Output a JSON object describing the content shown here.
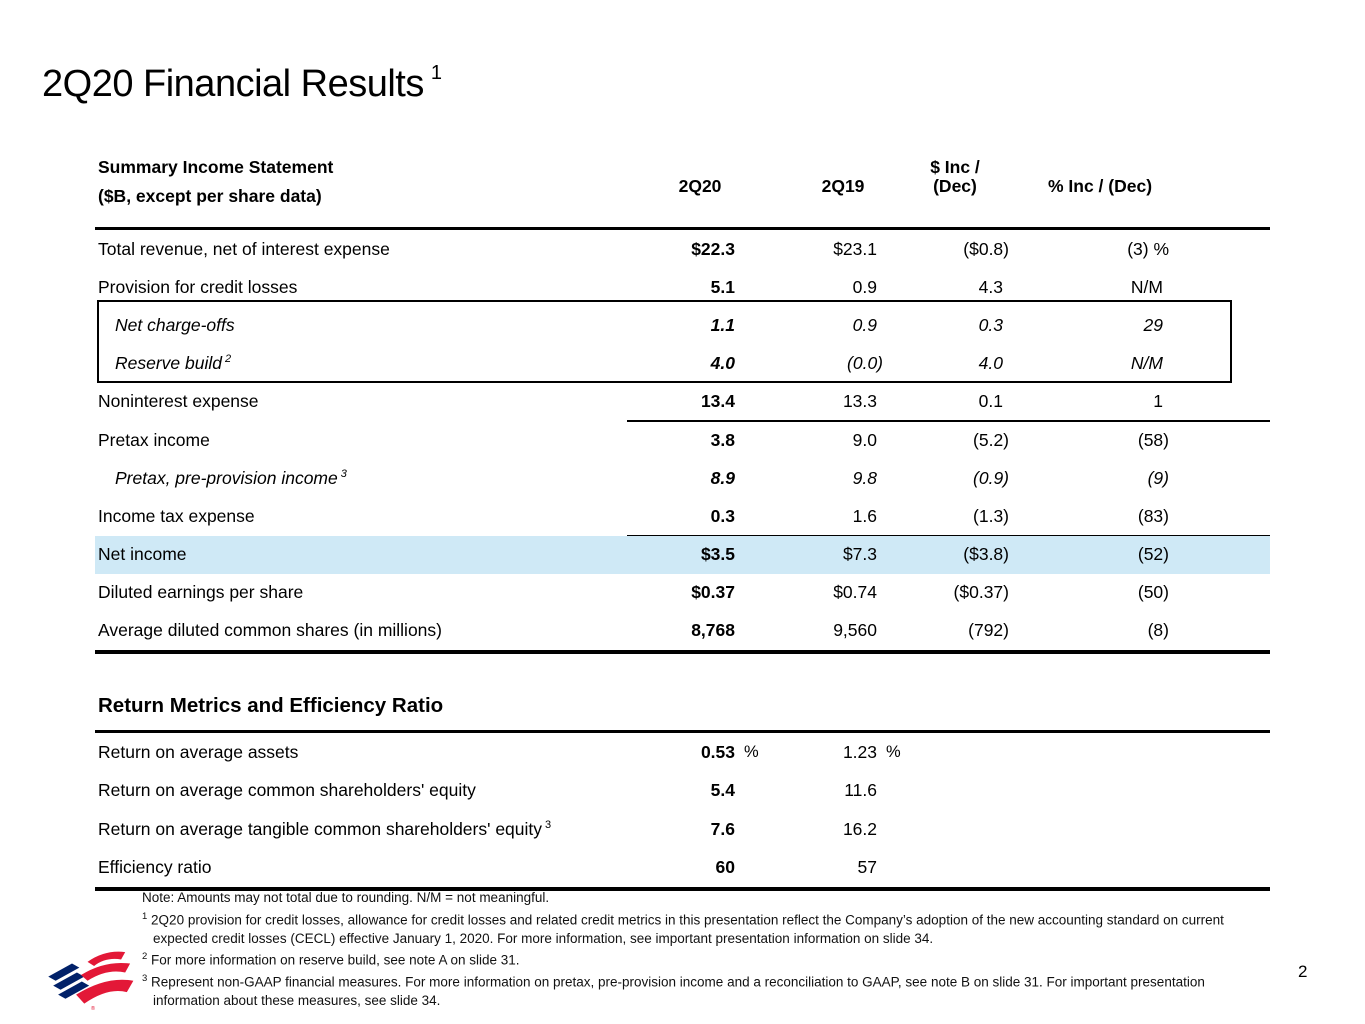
{
  "title": {
    "text": "2Q20 Financial Results",
    "superscript": "1"
  },
  "page_number": "2",
  "colors": {
    "highlight_blue": "#cfe9f6",
    "logo_blue": "#012169",
    "logo_red": "#e31837"
  },
  "logo": {
    "name": "bank-of-america-flag-logo"
  },
  "income_statement": {
    "header": {
      "label_line1": "Summary Income Statement",
      "label_line2": "($B, except per share data)",
      "col_2q20": "2Q20",
      "col_2q19": "2Q19",
      "col_inc_line1": "$ Inc /",
      "col_inc_line2": "(Dec)",
      "col_pct": "% Inc / (Dec)"
    },
    "rows": [
      {
        "label": "Total revenue, net of interest expense",
        "sup": "",
        "q20": "$22.3",
        "q19": "$23.1",
        "inc": "($0.8)",
        "pct": "(3) %",
        "italic": false,
        "indent": false,
        "highlight": false,
        "rule_below": false
      },
      {
        "label": "Provision for credit losses",
        "sup": "",
        "q20": "5.1",
        "q19": "0.9",
        "inc": "4.3",
        "pct": "N/M",
        "italic": false,
        "indent": false,
        "highlight": false,
        "rule_below": false
      },
      {
        "label": "Net charge-offs",
        "sup": "",
        "q20": "1.1",
        "q19": "0.9",
        "inc": "0.3",
        "pct": "29",
        "italic": true,
        "indent": true,
        "highlight": false,
        "rule_below": false
      },
      {
        "label": "Reserve build",
        "sup": "2",
        "q20": "4.0",
        "q19": "(0.0)",
        "inc": "4.0",
        "pct": "N/M",
        "italic": true,
        "indent": true,
        "highlight": false,
        "rule_below": false
      },
      {
        "label": "Noninterest expense",
        "sup": "",
        "q20": "13.4",
        "q19": "13.3",
        "inc": "0.1",
        "pct": "1",
        "italic": false,
        "indent": false,
        "highlight": false,
        "rule_below": true
      },
      {
        "label": "Pretax income",
        "sup": "",
        "q20": "3.8",
        "q19": "9.0",
        "inc": "(5.2)",
        "pct": "(58)",
        "italic": false,
        "indent": false,
        "highlight": false,
        "rule_below": false
      },
      {
        "label": "Pretax, pre-provision income",
        "sup": "3",
        "q20": "8.9",
        "q19": "9.8",
        "inc": "(0.9)",
        "pct": "(9)",
        "italic": true,
        "indent": true,
        "highlight": false,
        "rule_below": false
      },
      {
        "label": "Income tax expense",
        "sup": "",
        "q20": "0.3",
        "q19": "1.6",
        "inc": "(1.3)",
        "pct": "(83)",
        "italic": false,
        "indent": false,
        "highlight": false,
        "rule_below": true
      },
      {
        "label": "Net income",
        "sup": "",
        "q20": "$3.5",
        "q19": "$7.3",
        "inc": "($3.8)",
        "pct": "(52)",
        "italic": false,
        "indent": false,
        "highlight": true,
        "rule_below": false
      },
      {
        "label": "Diluted earnings per share",
        "sup": "",
        "q20": "$0.37",
        "q19": "$0.74",
        "inc": "($0.37)",
        "pct": "(50)",
        "italic": false,
        "indent": false,
        "highlight": false,
        "rule_below": false
      },
      {
        "label": "Average diluted common shares (in millions)",
        "sup": "",
        "q20": "8,768",
        "q19": "9,560",
        "inc": "(792)",
        "pct": "(8)",
        "italic": false,
        "indent": false,
        "highlight": false,
        "rule_below": false
      }
    ]
  },
  "return_metrics": {
    "title": "Return Metrics and Efficiency Ratio",
    "rows": [
      {
        "label": "Return on average assets",
        "sup": "",
        "q20": "0.53",
        "q20_suffix": "%",
        "q19": "1.23",
        "q19_suffix": "%"
      },
      {
        "label": "Return on average common shareholders' equity",
        "sup": "",
        "q20": "5.4",
        "q20_suffix": "",
        "q19": "11.6",
        "q19_suffix": ""
      },
      {
        "label": "Return on average tangible common shareholders' equity",
        "sup": "3",
        "q20": "7.6",
        "q20_suffix": "",
        "q19": "16.2",
        "q19_suffix": ""
      },
      {
        "label": "Efficiency ratio",
        "sup": "",
        "q20": "60",
        "q20_suffix": "",
        "q19": "57",
        "q19_suffix": ""
      }
    ]
  },
  "footnotes": {
    "note": "Note: Amounts may not total due to rounding. N/M = not meaningful.",
    "items": [
      {
        "sup": "1",
        "text": "2Q20 provision for credit losses, allowance for credit losses and related credit metrics in this presentation reflect the Company’s adoption of the new accounting standard on current expected credit losses (CECL) effective January 1, 2020. For more information, see important presentation information on slide 34."
      },
      {
        "sup": "2",
        "text": "For more information on reserve build, see note A on slide 31."
      },
      {
        "sup": "3",
        "text": "Represent non-GAAP financial measures. For more information on pretax, pre-provision income and a reconciliation to GAAP, see note B on slide 31. For important presentation information about these measures, see slide 34."
      }
    ]
  }
}
